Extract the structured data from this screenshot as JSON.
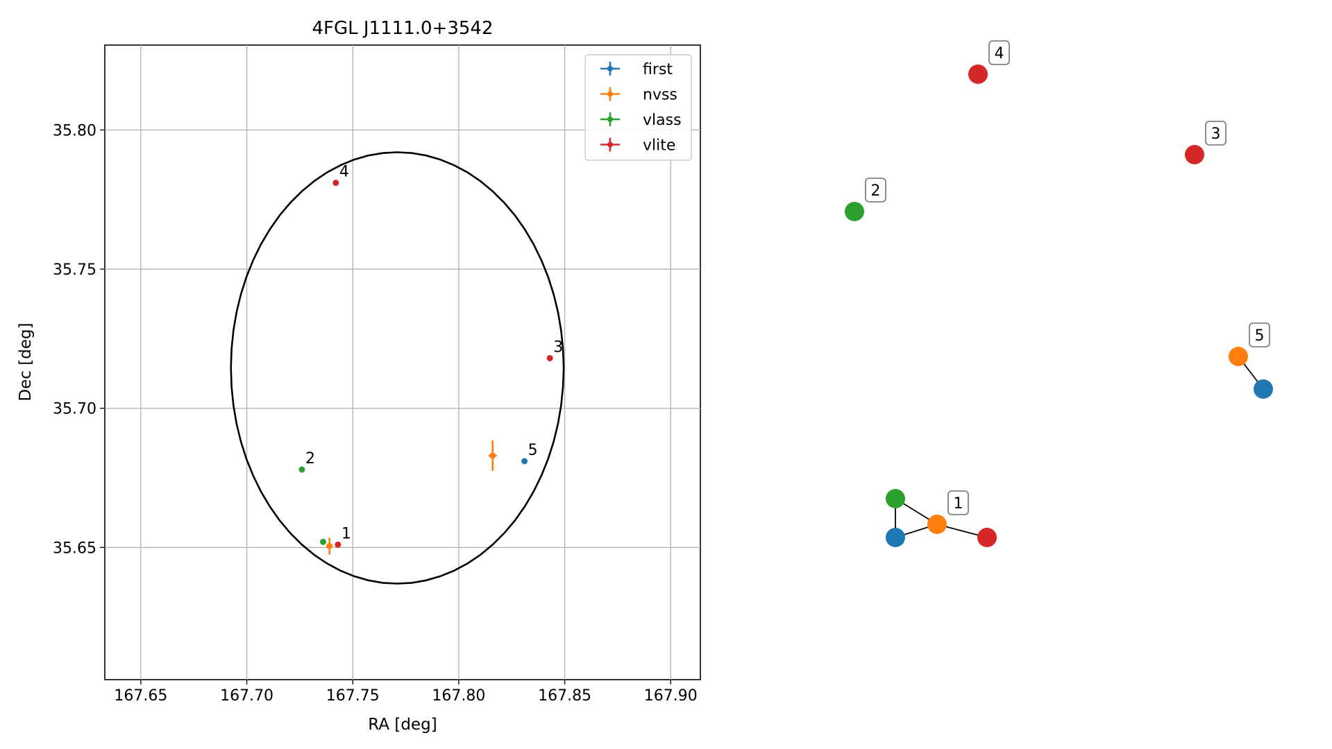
{
  "chart_data": [
    {
      "type": "scatter",
      "title": "4FGL J1111.0+3542",
      "xlabel": "RA [deg]",
      "ylabel": "Dec [deg]",
      "xlim": [
        167.633,
        167.914
      ],
      "ylim": [
        35.6025,
        35.8305
      ],
      "xticks": [
        167.65,
        167.7,
        167.75,
        167.8,
        167.85,
        167.9
      ],
      "xtick_labels": [
        "167.65",
        "167.70",
        "167.75",
        "167.80",
        "167.85",
        "167.90"
      ],
      "yticks": [
        35.65,
        35.7,
        35.75,
        35.8
      ],
      "ytick_labels": [
        "35.65",
        "35.70",
        "35.75",
        "35.80"
      ],
      "grid": true,
      "legend_position": "top-right",
      "series": [
        {
          "name": "first",
          "color": "#1f77b4",
          "points": [
            {
              "x": 167.831,
              "y": 35.681,
              "xerr": 0,
              "yerr": 0
            }
          ]
        },
        {
          "name": "nvss",
          "color": "#ff7f0e",
          "points": [
            {
              "x": 167.739,
              "y": 35.6505,
              "xerr": 0.0015,
              "yerr": 0.003
            },
            {
              "x": 167.816,
              "y": 35.683,
              "xerr": 0.002,
              "yerr": 0.0055
            }
          ]
        },
        {
          "name": "vlass",
          "color": "#2ca02c",
          "points": [
            {
              "x": 167.736,
              "y": 35.652,
              "xerr": 0,
              "yerr": 0
            },
            {
              "x": 167.726,
              "y": 35.678,
              "xerr": 0,
              "yerr": 0
            }
          ]
        },
        {
          "name": "vlite",
          "color": "#d62728",
          "points": [
            {
              "x": 167.743,
              "y": 35.651,
              "xerr": 0,
              "yerr": 0
            },
            {
              "x": 167.843,
              "y": 35.718,
              "xerr": 0,
              "yerr": 0
            },
            {
              "x": 167.742,
              "y": 35.781,
              "xerr": 0,
              "yerr": 0
            }
          ]
        }
      ],
      "annotations": [
        {
          "text": "1",
          "x": 167.743,
          "y": 35.651
        },
        {
          "text": "2",
          "x": 167.726,
          "y": 35.678
        },
        {
          "text": "3",
          "x": 167.843,
          "y": 35.718
        },
        {
          "text": "4",
          "x": 167.742,
          "y": 35.781
        },
        {
          "text": "5",
          "x": 167.831,
          "y": 35.681
        }
      ],
      "ellipse": {
        "center_x": 167.771,
        "center_y": 35.7145,
        "semi_axis_x": 0.0785,
        "semi_axis_y": 0.0775,
        "color": "#000000"
      }
    },
    {
      "type": "graph",
      "nodes": [
        {
          "id": "1-first",
          "color": "#1f77b4"
        },
        {
          "id": "1-nvss",
          "color": "#ff7f0e"
        },
        {
          "id": "1-vlass",
          "color": "#2ca02c"
        },
        {
          "id": "1-vlite",
          "color": "#d62728"
        },
        {
          "id": "2-vlass",
          "color": "#2ca02c"
        },
        {
          "id": "3-vlite",
          "color": "#d62728"
        },
        {
          "id": "4-vlite",
          "color": "#d62728"
        },
        {
          "id": "5-nvss",
          "color": "#ff7f0e"
        },
        {
          "id": "5-first",
          "color": "#1f77b4"
        }
      ],
      "edges": [
        [
          "1-vlass",
          "1-first"
        ],
        [
          "1-vlass",
          "1-nvss"
        ],
        [
          "1-first",
          "1-nvss"
        ],
        [
          "1-nvss",
          "1-vlite"
        ],
        [
          "5-nvss",
          "5-first"
        ]
      ],
      "labels": [
        {
          "text": "1",
          "node": "1-nvss"
        },
        {
          "text": "2",
          "node": "2-vlass"
        },
        {
          "text": "3",
          "node": "3-vlite"
        },
        {
          "text": "4",
          "node": "4-vlite"
        },
        {
          "text": "5",
          "node": "5-nvss"
        }
      ]
    }
  ]
}
